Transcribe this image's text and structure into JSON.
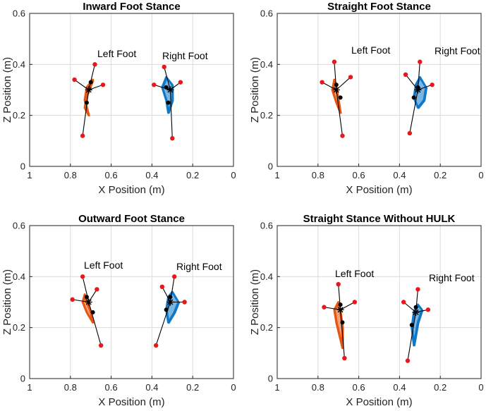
{
  "colors": {
    "left": "#e8550f",
    "right": "#0f79c8",
    "marker": "#e8161d",
    "axis": "#222222"
  },
  "chart_data": [
    {
      "type": "scatter",
      "title": "Inward Foot Stance",
      "xlabel": "X Position (m)",
      "ylabel": "Z Position (m)",
      "xlim": [
        1,
        0
      ],
      "ylim": [
        0,
        0.6
      ],
      "xticks": [
        "1",
        "0.8",
        "0.6",
        "0.4",
        "0.2",
        "0"
      ],
      "yticks": [
        "0",
        "0.2",
        "0.4",
        "0.6"
      ],
      "grid": true,
      "left_label": "Left Foot",
      "right_label": "Right Foot",
      "left_foot": {
        "ankle": [
          0.71,
          0.3
        ],
        "red_points": [
          [
            0.68,
            0.4
          ],
          [
            0.74,
            0.12
          ],
          [
            0.78,
            0.34
          ],
          [
            0.64,
            0.32
          ]
        ],
        "black_points": [
          [
            0.7,
            0.33
          ],
          [
            0.72,
            0.25
          ]
        ],
        "trace": [
          [
            0.69,
            0.34
          ],
          [
            0.72,
            0.31
          ],
          [
            0.73,
            0.26
          ],
          [
            0.71,
            0.2
          ],
          [
            0.73,
            0.23
          ],
          [
            0.72,
            0.28
          ],
          [
            0.69,
            0.34
          ]
        ]
      },
      "right_foot": {
        "ankle": [
          0.31,
          0.3
        ],
        "red_points": [
          [
            0.34,
            0.39
          ],
          [
            0.3,
            0.11
          ],
          [
            0.39,
            0.32
          ],
          [
            0.26,
            0.33
          ]
        ],
        "black_points": [
          [
            0.33,
            0.31
          ],
          [
            0.32,
            0.25
          ]
        ],
        "trace": [
          [
            0.33,
            0.35
          ],
          [
            0.3,
            0.32
          ],
          [
            0.3,
            0.26
          ],
          [
            0.32,
            0.21
          ],
          [
            0.33,
            0.26
          ],
          [
            0.35,
            0.31
          ],
          [
            0.33,
            0.35
          ]
        ]
      }
    },
    {
      "type": "scatter",
      "title": "Straight Foot Stance",
      "xlabel": "X Position (m)",
      "ylabel": "Z Position (m)",
      "xlim": [
        1,
        0
      ],
      "ylim": [
        0,
        0.6
      ],
      "xticks": [
        "1",
        "0.8",
        "0.6",
        "0.4",
        "0.2",
        "0"
      ],
      "yticks": [
        "0",
        "0.2",
        "0.4",
        "0.6"
      ],
      "grid": true,
      "left_label": "Left Foot",
      "right_label": "Right Foot",
      "left_foot": {
        "ankle": [
          0.71,
          0.3
        ],
        "red_points": [
          [
            0.72,
            0.41
          ],
          [
            0.68,
            0.12
          ],
          [
            0.78,
            0.33
          ],
          [
            0.64,
            0.35
          ]
        ],
        "black_points": [
          [
            0.71,
            0.32
          ],
          [
            0.69,
            0.27
          ]
        ],
        "trace": [
          [
            0.72,
            0.34
          ],
          [
            0.73,
            0.3
          ],
          [
            0.71,
            0.25
          ],
          [
            0.69,
            0.21
          ],
          [
            0.7,
            0.26
          ],
          [
            0.71,
            0.31
          ],
          [
            0.72,
            0.34
          ]
        ]
      },
      "right_foot": {
        "ankle": [
          0.31,
          0.3
        ],
        "red_points": [
          [
            0.3,
            0.41
          ],
          [
            0.35,
            0.13
          ],
          [
            0.37,
            0.36
          ],
          [
            0.24,
            0.32
          ]
        ],
        "black_points": [
          [
            0.31,
            0.31
          ],
          [
            0.33,
            0.27
          ]
        ],
        "trace": [
          [
            0.3,
            0.35
          ],
          [
            0.27,
            0.31
          ],
          [
            0.28,
            0.26
          ],
          [
            0.31,
            0.23
          ],
          [
            0.33,
            0.27
          ],
          [
            0.32,
            0.32
          ],
          [
            0.3,
            0.35
          ]
        ]
      }
    },
    {
      "type": "scatter",
      "title": "Outward Foot Stance",
      "xlabel": "X Position (m)",
      "ylabel": "Z Position (m)",
      "xlim": [
        1,
        0
      ],
      "ylim": [
        0,
        0.6
      ],
      "xticks": [
        "1",
        "0.8",
        "0.6",
        "0.4",
        "0.2",
        "0"
      ],
      "yticks": [
        "0",
        "0.2",
        "0.4",
        "0.6"
      ],
      "grid": true,
      "left_label": "Left Foot",
      "right_label": "Right Foot",
      "left_foot": {
        "ankle": [
          0.71,
          0.3
        ],
        "red_points": [
          [
            0.74,
            0.4
          ],
          [
            0.65,
            0.13
          ],
          [
            0.79,
            0.31
          ],
          [
            0.67,
            0.35
          ]
        ],
        "black_points": [
          [
            0.72,
            0.32
          ],
          [
            0.69,
            0.26
          ]
        ],
        "trace": [
          [
            0.73,
            0.33
          ],
          [
            0.74,
            0.3
          ],
          [
            0.72,
            0.26
          ],
          [
            0.69,
            0.22
          ],
          [
            0.7,
            0.26
          ],
          [
            0.72,
            0.3
          ],
          [
            0.73,
            0.33
          ]
        ]
      },
      "right_foot": {
        "ankle": [
          0.31,
          0.3
        ],
        "red_points": [
          [
            0.29,
            0.4
          ],
          [
            0.38,
            0.13
          ],
          [
            0.35,
            0.36
          ],
          [
            0.24,
            0.3
          ]
        ],
        "black_points": [
          [
            0.31,
            0.32
          ],
          [
            0.33,
            0.27
          ]
        ],
        "trace": [
          [
            0.3,
            0.34
          ],
          [
            0.27,
            0.3
          ],
          [
            0.29,
            0.26
          ],
          [
            0.32,
            0.22
          ],
          [
            0.33,
            0.27
          ],
          [
            0.32,
            0.32
          ],
          [
            0.3,
            0.34
          ]
        ]
      }
    },
    {
      "type": "scatter",
      "title": "Straight Stance Without HULK",
      "xlabel": "X Position (m)",
      "ylabel": "Z Position (m)",
      "xlim": [
        1,
        0
      ],
      "ylim": [
        0,
        0.6
      ],
      "xticks": [
        "1",
        "0.8",
        "0.6",
        "0.4",
        "0.2",
        "0"
      ],
      "yticks": [
        "0",
        "0.2",
        "0.4",
        "0.6"
      ],
      "grid": true,
      "left_label": "Left Foot",
      "right_label": "Right Foot",
      "left_foot": {
        "ankle": [
          0.69,
          0.27
        ],
        "red_points": [
          [
            0.7,
            0.37
          ],
          [
            0.67,
            0.08
          ],
          [
            0.77,
            0.28
          ],
          [
            0.62,
            0.3
          ]
        ],
        "black_points": [
          [
            0.69,
            0.29
          ],
          [
            0.68,
            0.22
          ]
        ],
        "trace": [
          [
            0.7,
            0.3
          ],
          [
            0.72,
            0.27
          ],
          [
            0.71,
            0.22
          ],
          [
            0.68,
            0.12
          ],
          [
            0.68,
            0.2
          ],
          [
            0.69,
            0.26
          ],
          [
            0.7,
            0.3
          ]
        ]
      },
      "right_foot": {
        "ankle": [
          0.32,
          0.26
        ],
        "red_points": [
          [
            0.31,
            0.35
          ],
          [
            0.36,
            0.07
          ],
          [
            0.38,
            0.3
          ],
          [
            0.26,
            0.27
          ]
        ],
        "black_points": [
          [
            0.32,
            0.28
          ],
          [
            0.34,
            0.21
          ]
        ],
        "trace": [
          [
            0.31,
            0.29
          ],
          [
            0.29,
            0.27
          ],
          [
            0.31,
            0.22
          ],
          [
            0.33,
            0.13
          ],
          [
            0.34,
            0.2
          ],
          [
            0.33,
            0.26
          ],
          [
            0.31,
            0.29
          ]
        ]
      }
    }
  ]
}
